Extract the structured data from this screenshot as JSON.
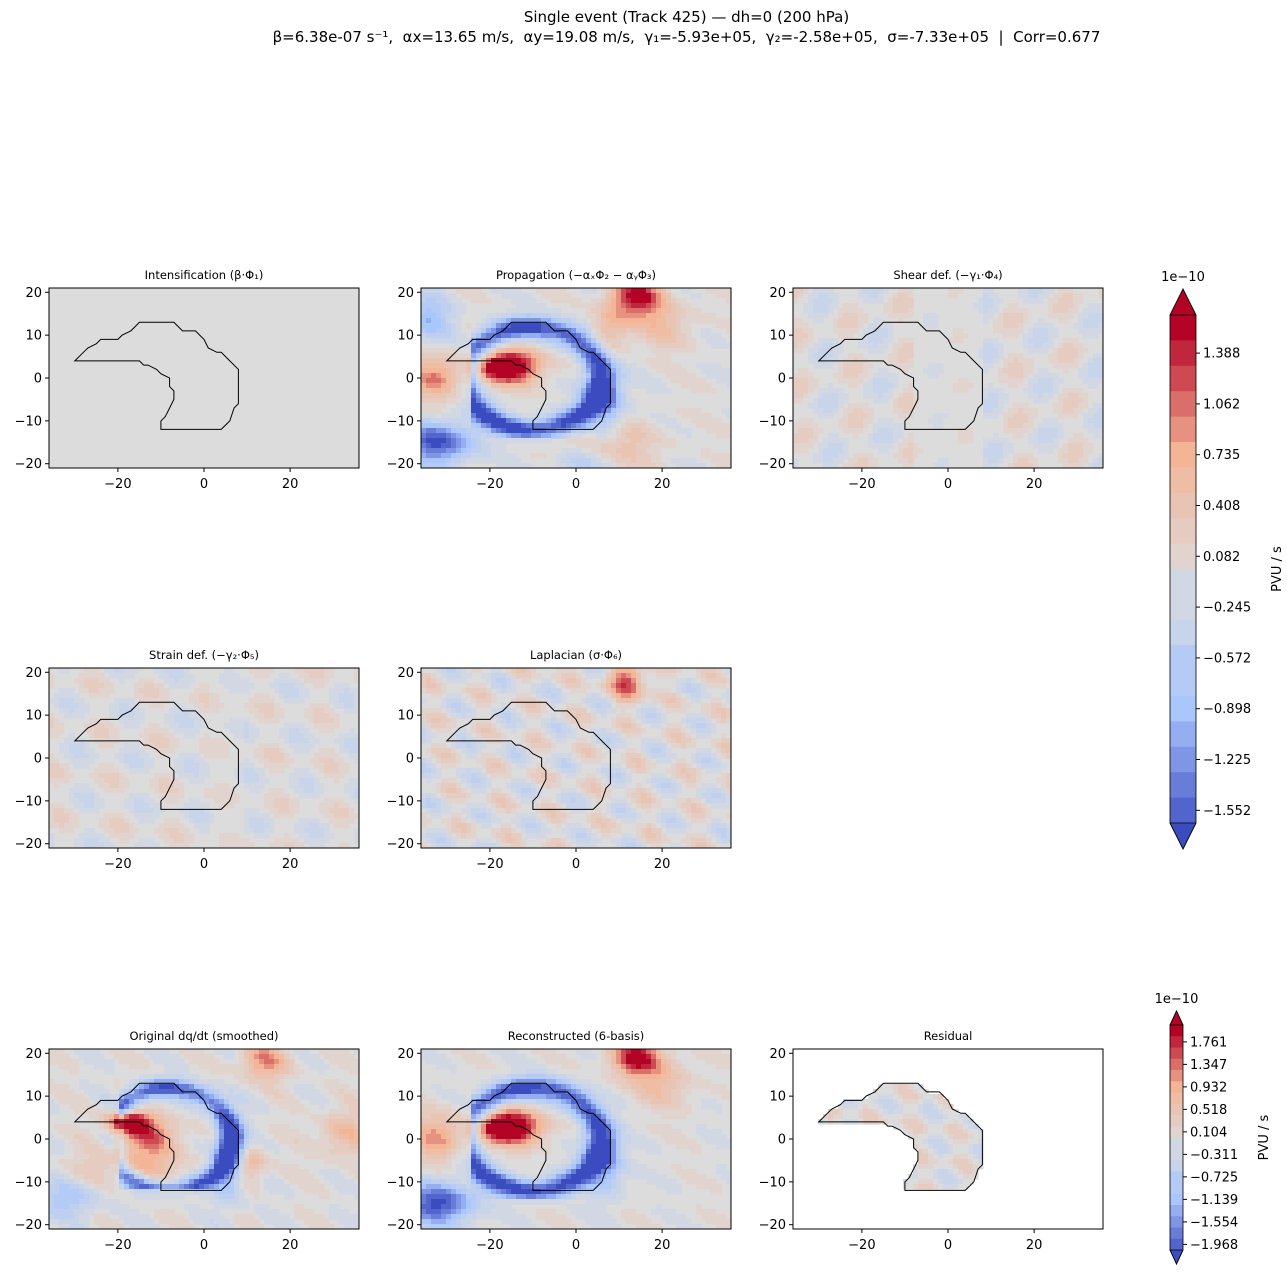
{
  "figure": {
    "suptitle_line1": "Single event (Track 425) — dh=0 (200 hPa)",
    "suptitle_line2": "β=6.38e-07 s⁻¹,  αx=13.65 m/s,  αy=19.08 m/s,  γ₁=-5.93e+05,  γ₂=-2.58e+05,  σ=-7.33e+05  |  Corr=0.677"
  },
  "colors": {
    "neutral": "#dcdcdc",
    "blue_strong": "#3b4cc0",
    "red_strong": "#b40426",
    "contour_outline": "#000000"
  },
  "chart_data": [
    {
      "type": "heatmap",
      "panel": "intensification",
      "title": "Intensification (β·Φ₁)",
      "xlim": [
        -36,
        36
      ],
      "ylim": [
        -21,
        21
      ],
      "xticks": [
        "−20",
        "0",
        "20"
      ],
      "yticks": [
        "20",
        "10",
        "0",
        "−10",
        "−20"
      ],
      "field": "nearly uniform ~0 (gray)"
    },
    {
      "type": "heatmap",
      "panel": "propagation",
      "title": "Propagation (−αₓΦ₂ − αᵧΦ₃)",
      "xlim": [
        -36,
        36
      ],
      "ylim": [
        -21,
        21
      ],
      "xticks": [
        "−20",
        "0",
        "20"
      ],
      "yticks": [
        "20",
        "10",
        "0",
        "−10",
        "−20"
      ],
      "features": [
        {
          "sign": "positive",
          "x": -14,
          "y": 3,
          "strength": 1.4
        },
        {
          "sign": "positive",
          "x": 14,
          "y": 19,
          "strength": 1.3
        },
        {
          "sign": "negative",
          "x": 3,
          "y": 5,
          "strength": -1.4
        },
        {
          "sign": "negative",
          "x": -32,
          "y": -15,
          "strength": -1.2
        },
        {
          "sign": "positive",
          "x": -33,
          "y": 0,
          "strength": 0.7
        }
      ]
    },
    {
      "type": "heatmap",
      "panel": "shear_def",
      "title": "Shear def. (−γ₁·Φ₄)",
      "xlim": [
        -36,
        36
      ],
      "ylim": [
        -21,
        21
      ],
      "xticks": [
        "−20",
        "0",
        "20"
      ],
      "yticks": [
        "20",
        "10",
        "0",
        "−10",
        "−20"
      ],
      "field": "weak ±0.2"
    },
    {
      "type": "heatmap",
      "panel": "strain_def",
      "title": "Strain def. (−γ₂·Φ₅)",
      "xlim": [
        -36,
        36
      ],
      "ylim": [
        -21,
        21
      ],
      "xticks": [
        "−20",
        "0",
        "20"
      ],
      "yticks": [
        "20",
        "10",
        "0",
        "−10",
        "−20"
      ],
      "field": "weak ±0.2"
    },
    {
      "type": "heatmap",
      "panel": "laplacian",
      "title": "Laplacian (σ·Φ₆)",
      "xlim": [
        -36,
        36
      ],
      "ylim": [
        -21,
        21
      ],
      "xticks": [
        "−20",
        "0",
        "20"
      ],
      "yticks": [
        "20",
        "10",
        "0",
        "−10",
        "−20"
      ],
      "field": "weak ±0.4, stronger positive near (10, 18)"
    },
    {
      "type": "heatmap",
      "panel": "original",
      "title": "Original dq/dt (smoothed)",
      "xlim": [
        -36,
        36
      ],
      "ylim": [
        -21,
        21
      ],
      "xticks": [
        "−20",
        "0",
        "20"
      ],
      "yticks": [
        "20",
        "10",
        "0",
        "−10",
        "−20"
      ]
    },
    {
      "type": "heatmap",
      "panel": "reconstructed",
      "title": "Reconstructed (6-basis)",
      "xlim": [
        -36,
        36
      ],
      "ylim": [
        -21,
        21
      ],
      "xticks": [
        "−20",
        "0",
        "20"
      ],
      "yticks": [
        "20",
        "10",
        "0",
        "−10",
        "−20"
      ]
    },
    {
      "type": "heatmap",
      "panel": "residual",
      "title": "Residual",
      "xlim": [
        -36,
        36
      ],
      "ylim": [
        -21,
        21
      ],
      "xticks": [
        "−20",
        "0",
        "20"
      ],
      "yticks": [
        "20",
        "10",
        "0",
        "−10",
        "−20"
      ],
      "field": "masked outside contour; weak ±0.3 inside"
    }
  ],
  "outline_polygon": [
    [
      -30,
      4
    ],
    [
      -28,
      6
    ],
    [
      -27,
      7
    ],
    [
      -25,
      8
    ],
    [
      -24,
      9
    ],
    [
      -20,
      9
    ],
    [
      -19,
      10
    ],
    [
      -17,
      11
    ],
    [
      -16,
      12
    ],
    [
      -15,
      13
    ],
    [
      -7,
      13
    ],
    [
      -6,
      12
    ],
    [
      -5,
      11
    ],
    [
      -2,
      11
    ],
    [
      -1,
      10
    ],
    [
      0,
      9
    ],
    [
      1,
      7
    ],
    [
      3,
      6
    ],
    [
      4,
      6
    ],
    [
      6,
      4
    ],
    [
      8,
      2
    ],
    [
      8,
      -6
    ],
    [
      7,
      -7
    ],
    [
      6,
      -10
    ],
    [
      5,
      -11
    ],
    [
      4,
      -12
    ],
    [
      -10,
      -12
    ],
    [
      -10,
      -10
    ],
    [
      -9,
      -9
    ],
    [
      -8,
      -7
    ],
    [
      -7,
      -5
    ],
    [
      -7,
      -3
    ],
    [
      -8,
      -2
    ],
    [
      -8,
      0
    ],
    [
      -10,
      1
    ],
    [
      -11,
      2
    ],
    [
      -13,
      3
    ],
    [
      -14,
      3
    ],
    [
      -15,
      4
    ],
    [
      -30,
      4
    ]
  ],
  "colorbar_top": {
    "label": "PVU / s",
    "offset": "1e−10",
    "ticks": [
      "1.388",
      "1.062",
      "0.735",
      "0.408",
      "0.082",
      "−0.245",
      "−0.572",
      "−0.898",
      "−1.225",
      "−1.552"
    ]
  },
  "colorbar_bottom": {
    "label": "PVU / s",
    "offset": "1e−10",
    "ticks": [
      "1.761",
      "1.347",
      "0.932",
      "0.518",
      "0.104",
      "−0.311",
      "−0.725",
      "−1.139",
      "−1.554",
      "−1.968"
    ]
  }
}
